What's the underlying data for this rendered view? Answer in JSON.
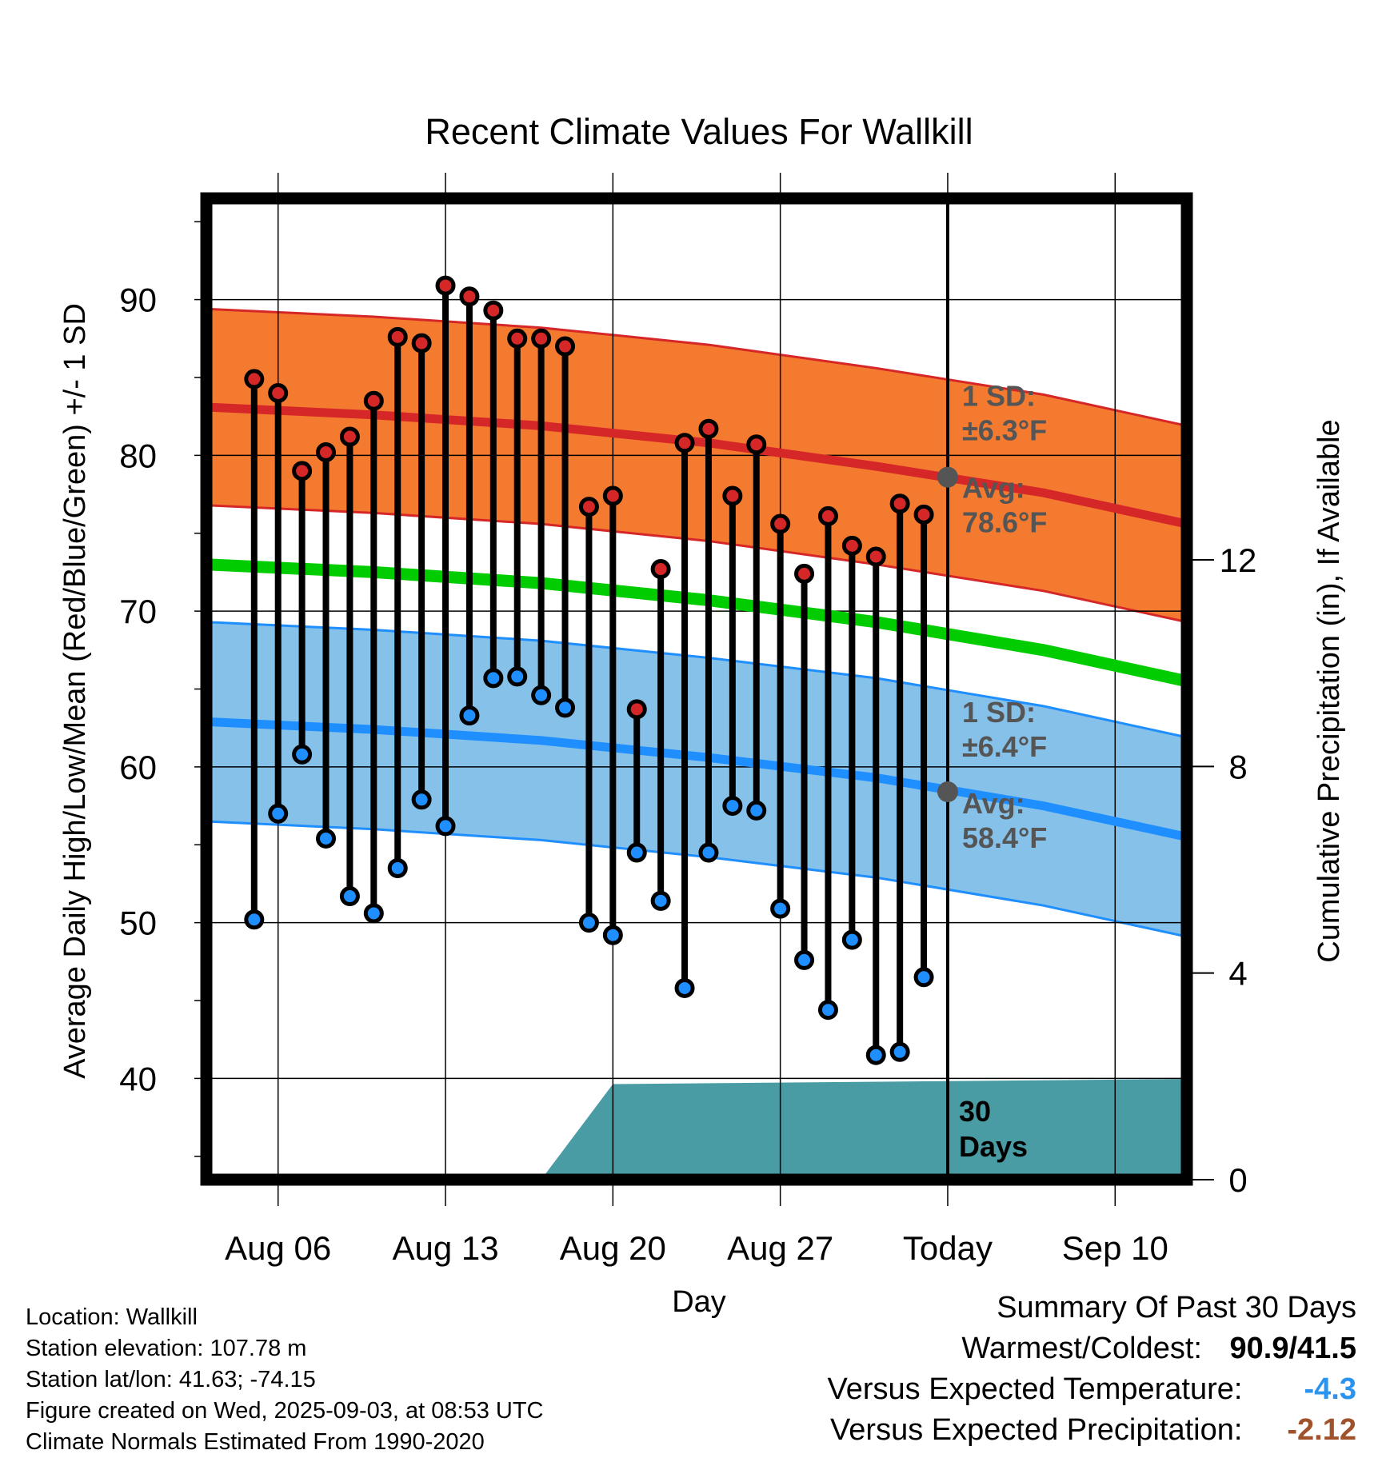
{
  "chart_data": {
    "type": "line",
    "title": "Recent Climate Values For Wallkill",
    "xlabel": "Day",
    "ylabel": "Average Daily High/Low/Mean (Red/Blue/Green) +/- 1 SD",
    "y2label": "Cumulative Precipitation (in), If Available",
    "ylim": [
      33.5,
      96.5
    ],
    "y2lim": [
      0,
      19
    ],
    "xlim": [
      "2025-08-03",
      "2025-09-13"
    ],
    "x_tick_labels": [
      "Aug 06",
      "Aug 13",
      "Aug 20",
      "Aug 27",
      "Today",
      "Sep 10"
    ],
    "x_tick_dates": [
      "2025-08-06",
      "2025-08-13",
      "2025-08-20",
      "2025-08-27",
      "2025-09-03",
      "2025-09-10"
    ],
    "y_ticks": [
      40,
      50,
      60,
      70,
      80,
      90
    ],
    "y2_ticks": [
      0,
      4,
      8,
      12
    ],
    "grid": true,
    "today": "2025-09-03",
    "dates": [
      "2025-08-05",
      "2025-08-06",
      "2025-08-07",
      "2025-08-08",
      "2025-08-09",
      "2025-08-10",
      "2025-08-11",
      "2025-08-12",
      "2025-08-13",
      "2025-08-14",
      "2025-08-15",
      "2025-08-16",
      "2025-08-17",
      "2025-08-18",
      "2025-08-19",
      "2025-08-20",
      "2025-08-21",
      "2025-08-22",
      "2025-08-23",
      "2025-08-24",
      "2025-08-25",
      "2025-08-26",
      "2025-08-27",
      "2025-08-28",
      "2025-08-29",
      "2025-08-30",
      "2025-08-31",
      "2025-09-01",
      "2025-09-02"
    ],
    "series": [
      {
        "name": "Daily High",
        "color": "#d62728",
        "values": [
          84.9,
          84.0,
          79.0,
          80.2,
          81.2,
          83.5,
          87.6,
          87.2,
          90.9,
          90.2,
          89.3,
          87.5,
          87.5,
          87.0,
          76.7,
          77.4,
          63.7,
          72.7,
          80.8,
          81.7,
          77.4,
          80.7,
          75.6,
          72.4,
          76.1,
          74.2,
          73.5,
          76.9,
          76.2
        ]
      },
      {
        "name": "Daily Low",
        "color": "#1f8fff",
        "values": [
          50.2,
          57.0,
          60.8,
          55.4,
          51.7,
          50.6,
          53.5,
          57.9,
          56.2,
          63.3,
          65.7,
          65.8,
          64.6,
          63.8,
          50.0,
          49.2,
          54.5,
          51.4,
          45.8,
          54.5,
          57.5,
          57.2,
          50.9,
          47.6,
          44.4,
          48.9,
          41.5,
          41.7,
          46.5
        ]
      },
      {
        "name": "Average High",
        "color": "#d62728",
        "x": [
          "2025-08-03",
          "2025-08-10",
          "2025-08-17",
          "2025-08-24",
          "2025-08-31",
          "2025-09-07",
          "2025-09-13"
        ],
        "values": [
          83.1,
          82.6,
          81.9,
          80.8,
          79.3,
          77.6,
          75.6
        ]
      },
      {
        "name": "Average Low",
        "color": "#1f8fff",
        "x": [
          "2025-08-03",
          "2025-08-10",
          "2025-08-17",
          "2025-08-24",
          "2025-08-31",
          "2025-09-07",
          "2025-09-13"
        ],
        "values": [
          62.9,
          62.4,
          61.7,
          60.6,
          59.3,
          57.5,
          55.5
        ]
      },
      {
        "name": "Average Mean",
        "color": "#00cc00",
        "x": [
          "2025-08-03",
          "2025-08-10",
          "2025-08-17",
          "2025-08-24",
          "2025-08-31",
          "2025-09-07",
          "2025-09-13"
        ],
        "values": [
          73.0,
          72.5,
          71.8,
          70.7,
          69.3,
          67.5,
          65.5
        ]
      }
    ],
    "high_sd": 6.3,
    "low_sd": 6.4,
    "precipitation": {
      "color": "#4a9ca4",
      "x": [
        "2025-08-17",
        "2025-08-20",
        "2025-09-13"
      ],
      "values": [
        0.0,
        1.85,
        1.95
      ]
    },
    "annotations": {
      "high_sd_label": "1 SD:",
      "high_sd_value": "±6.3°F",
      "high_avg_label": "Avg:",
      "high_avg_value": "78.6°F",
      "low_sd_label": "1 SD:",
      "low_sd_value": "±6.4°F",
      "low_avg_label": "Avg:",
      "low_avg_value": "58.4°F",
      "window_label_1": "30",
      "window_label_2": "Days"
    },
    "today_avg_high": 78.6,
    "today_avg_low": 58.4
  },
  "footer": {
    "location": "Location: Wallkill",
    "elevation": "Station elevation: 107.78 m",
    "latlon": "Station lat/lon: 41.63; -74.15",
    "created": "Figure created on Wed, 2025-09-03, at 08:53 UTC",
    "normals": "Climate Normals Estimated From 1990-2020"
  },
  "summary": {
    "heading": "Summary Of Past 30 Days",
    "warm_cold_label": "Warmest/Coldest:",
    "warm_cold_value": "90.9/41.5",
    "temp_label": "Versus Expected Temperature:",
    "temp_value": "-4.3",
    "temp_color": "#2b94ee",
    "precip_label": "Versus Expected Precipitation:",
    "precip_value": "-2.12",
    "precip_color": "#a0522d"
  }
}
